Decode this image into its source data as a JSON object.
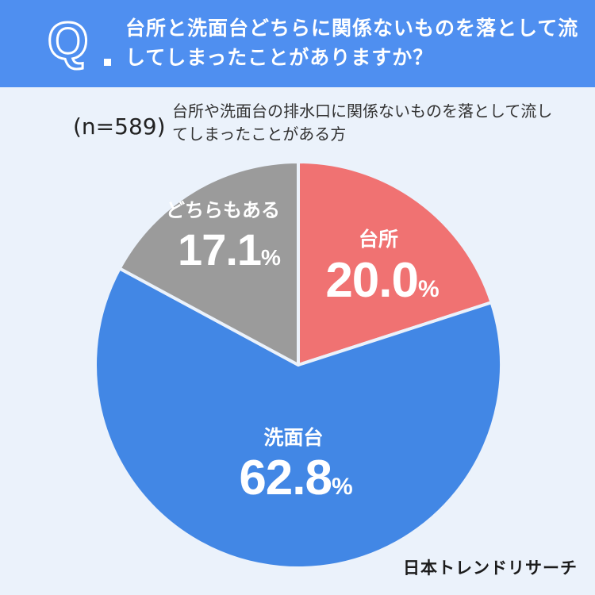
{
  "question": {
    "mark": "Q",
    "text": "台所と洗面台どちらに関係ないものを落として流してしまったことがありますか？"
  },
  "sample_size": "(n=589)",
  "subtitle": "台所や洗面台の排水口に関係ないものを落として流してしまったことがある方",
  "logo": "日本トレンドリサーチ",
  "colors": {
    "header": "#4f8ff0",
    "background": "#ebf2fb",
    "kitchen": "#f07272",
    "washbasin": "#4287e5",
    "both": "#9b9b9b"
  },
  "chart_data": {
    "type": "pie",
    "unit": "%",
    "slices": [
      {
        "label": "台所",
        "value": 20.0,
        "display": "20.0",
        "color": "#f07272"
      },
      {
        "label": "洗面台",
        "value": 62.8,
        "display": "62.8",
        "color": "#4287e5"
      },
      {
        "label": "どちらもある",
        "value": 17.1,
        "display": "17.1",
        "color": "#9b9b9b"
      }
    ]
  }
}
